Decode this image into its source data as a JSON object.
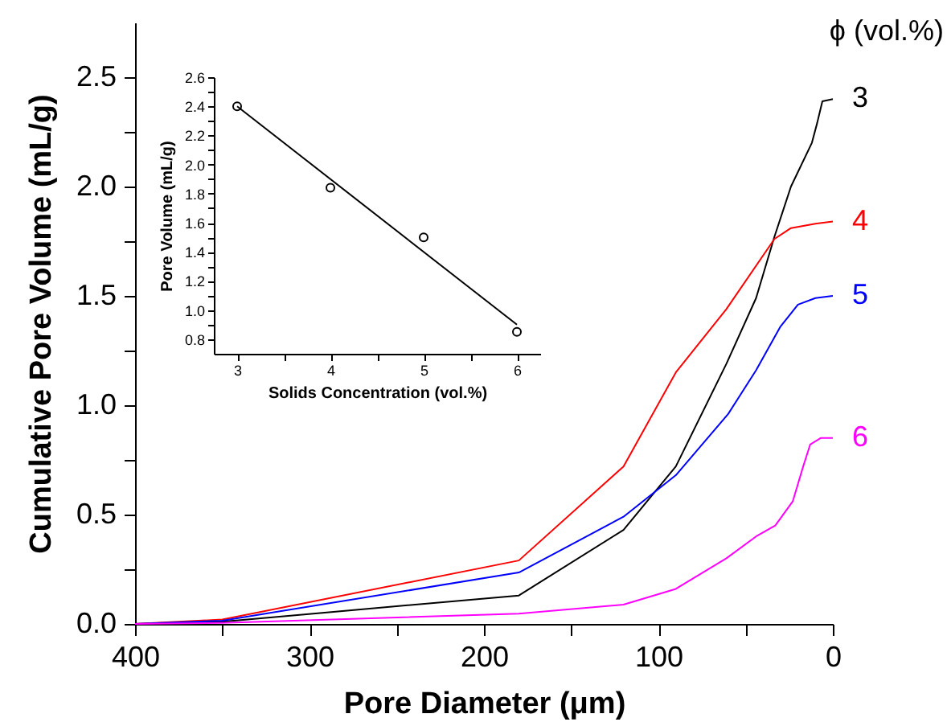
{
  "chart_data": [
    {
      "type": "line",
      "xlabel": "Pore Diameter (μm)",
      "ylabel": "Cumulative Pore Volume (mL/g)",
      "legend_title": "ϕ (vol.%)",
      "xlim": [
        400,
        0
      ],
      "ylim": [
        0,
        2.75
      ],
      "xticks": [
        400,
        {
          "value": 350,
          "label": null
        },
        300,
        {
          "value": 250,
          "label": null
        },
        200,
        {
          "value": 150,
          "label": null
        },
        100,
        {
          "value": 50,
          "label": null
        },
        0
      ],
      "yticks": [
        {
          "value": 0,
          "label": "0.0"
        },
        {
          "value": 0.25,
          "label": null
        },
        0.5,
        {
          "value": 0.75,
          "label": null
        },
        {
          "value": 1,
          "label": "1.0"
        },
        {
          "value": 1.25,
          "label": null
        },
        1.5,
        {
          "value": 1.75,
          "label": null
        },
        {
          "value": 2,
          "label": "2.0"
        },
        {
          "value": 2.25,
          "label": null
        },
        2.5
      ],
      "grid": false,
      "series": [
        {
          "name": "3",
          "color": "#000000",
          "x": [
            400,
            350,
            180,
            120,
            90,
            61,
            44,
            33.5,
            24,
            12,
            9,
            6,
            0
          ],
          "values": [
            0,
            0.01,
            0.13,
            0.43,
            0.72,
            1.19,
            1.49,
            1.77,
            2.0,
            2.2,
            2.29,
            2.39,
            2.4
          ]
        },
        {
          "name": "4",
          "color": "#ff0000",
          "x": [
            400,
            350,
            180,
            120,
            90,
            61,
            33.5,
            24,
            10,
            0
          ],
          "values": [
            0,
            0.02,
            0.29,
            0.72,
            1.15,
            1.44,
            1.76,
            1.81,
            1.83,
            1.84
          ]
        },
        {
          "name": "5",
          "color": "#0000ff",
          "x": [
            400,
            350,
            180,
            120,
            90,
            60,
            44,
            30,
            20,
            10,
            0
          ],
          "values": [
            0,
            0.015,
            0.235,
            0.49,
            0.68,
            0.96,
            1.16,
            1.36,
            1.46,
            1.49,
            1.5
          ]
        },
        {
          "name": "6",
          "color": "#ff00ff",
          "x": [
            400,
            350,
            180,
            120,
            90,
            61,
            44,
            33,
            23,
            17,
            13,
            7,
            0
          ],
          "values": [
            0,
            0.005,
            0.047,
            0.088,
            0.16,
            0.3,
            0.4,
            0.45,
            0.56,
            0.72,
            0.82,
            0.85,
            0.85
          ]
        }
      ]
    },
    {
      "type": "scatter",
      "xlabel": "Solids Concentration (vol.%)",
      "ylabel": "Pore Volume (mL/g)",
      "xlim": [
        2.75,
        6.25
      ],
      "ylim": [
        0.7,
        2.6
      ],
      "xticks": [
        3,
        {
          "value": 3.5,
          "label": null
        },
        4,
        {
          "value": 4.5,
          "label": null
        },
        5,
        {
          "value": 5.5,
          "label": null
        },
        6
      ],
      "yticks": [
        0.8,
        {
          "value": 0.9,
          "label": null
        },
        {
          "value": 1,
          "label": "1.0"
        },
        {
          "value": 1.1,
          "label": null
        },
        1.2,
        {
          "value": 1.3,
          "label": null
        },
        1.4,
        {
          "value": 1.5,
          "label": null
        },
        1.6,
        {
          "value": 1.7,
          "label": null
        },
        1.8,
        {
          "value": 1.9,
          "label": null
        },
        {
          "value": 2,
          "label": "2.0"
        },
        {
          "value": 2.1,
          "label": null
        },
        2.2,
        {
          "value": 2.3,
          "label": null
        },
        2.4,
        {
          "value": 2.5,
          "label": null
        },
        2.6
      ],
      "grid": false,
      "series": [
        {
          "type": "scatter",
          "marker": "circle",
          "color": "#000000",
          "x": [
            3,
            4,
            5,
            6
          ],
          "values": [
            2.4,
            1.84,
            1.5,
            0.85
          ]
        },
        {
          "type": "line",
          "marker": "none",
          "color": "#000000",
          "x": [
            3,
            6
          ],
          "values": [
            2.4,
            0.9
          ]
        }
      ]
    }
  ]
}
